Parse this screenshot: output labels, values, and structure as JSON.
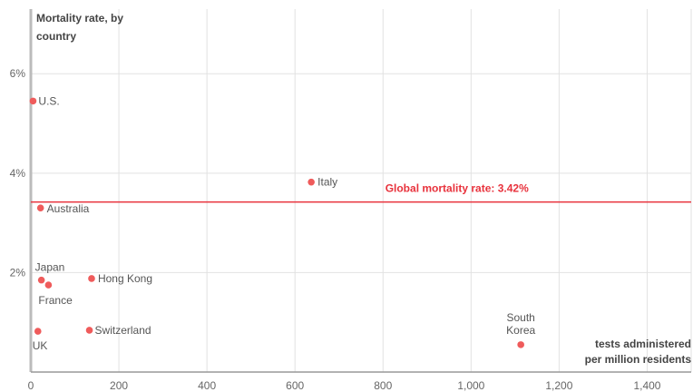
{
  "colors": {
    "point": "#ef5b5b",
    "reference": "#e8323c",
    "grid": "#e2e2e2",
    "axis": "#999999"
  },
  "chart_data": {
    "type": "scatter",
    "ylabel": "Mortality rate, by country",
    "xlabel": "tests administered per million residents",
    "xlabel_lines": [
      "tests administered",
      "per million residents"
    ],
    "ylabel_lines": [
      "Mortality rate, by",
      "country"
    ],
    "xlim": [
      0,
      1500
    ],
    "ylim": [
      0,
      7.3
    ],
    "x_ticks": [
      0,
      200,
      400,
      600,
      800,
      1000,
      1200,
      1400
    ],
    "x_tick_labels": [
      "0",
      "200",
      "400",
      "600",
      "800",
      "1,000",
      "1,200",
      "1,400"
    ],
    "y_ticks": [
      2,
      4,
      6
    ],
    "y_tick_labels": [
      "2%",
      "4%",
      "6%"
    ],
    "grid": true,
    "reference_line": {
      "y": 3.42,
      "label": "Global mortality rate: 3.42%"
    },
    "points": [
      {
        "label": "U.S.",
        "x": 5,
        "y": 5.45
      },
      {
        "label": "Italy",
        "x": 637,
        "y": 3.82
      },
      {
        "label": "Australia",
        "x": 22,
        "y": 3.3
      },
      {
        "label": "Japan",
        "x": 24,
        "y": 1.85
      },
      {
        "label": "France",
        "x": 40,
        "y": 1.75
      },
      {
        "label": "Hong Kong",
        "x": 138,
        "y": 1.88
      },
      {
        "label": "UK",
        "x": 16,
        "y": 0.82
      },
      {
        "label": "Switzerland",
        "x": 133,
        "y": 0.84
      },
      {
        "label": "South Korea",
        "x": 1113,
        "y": 0.55
      }
    ]
  }
}
